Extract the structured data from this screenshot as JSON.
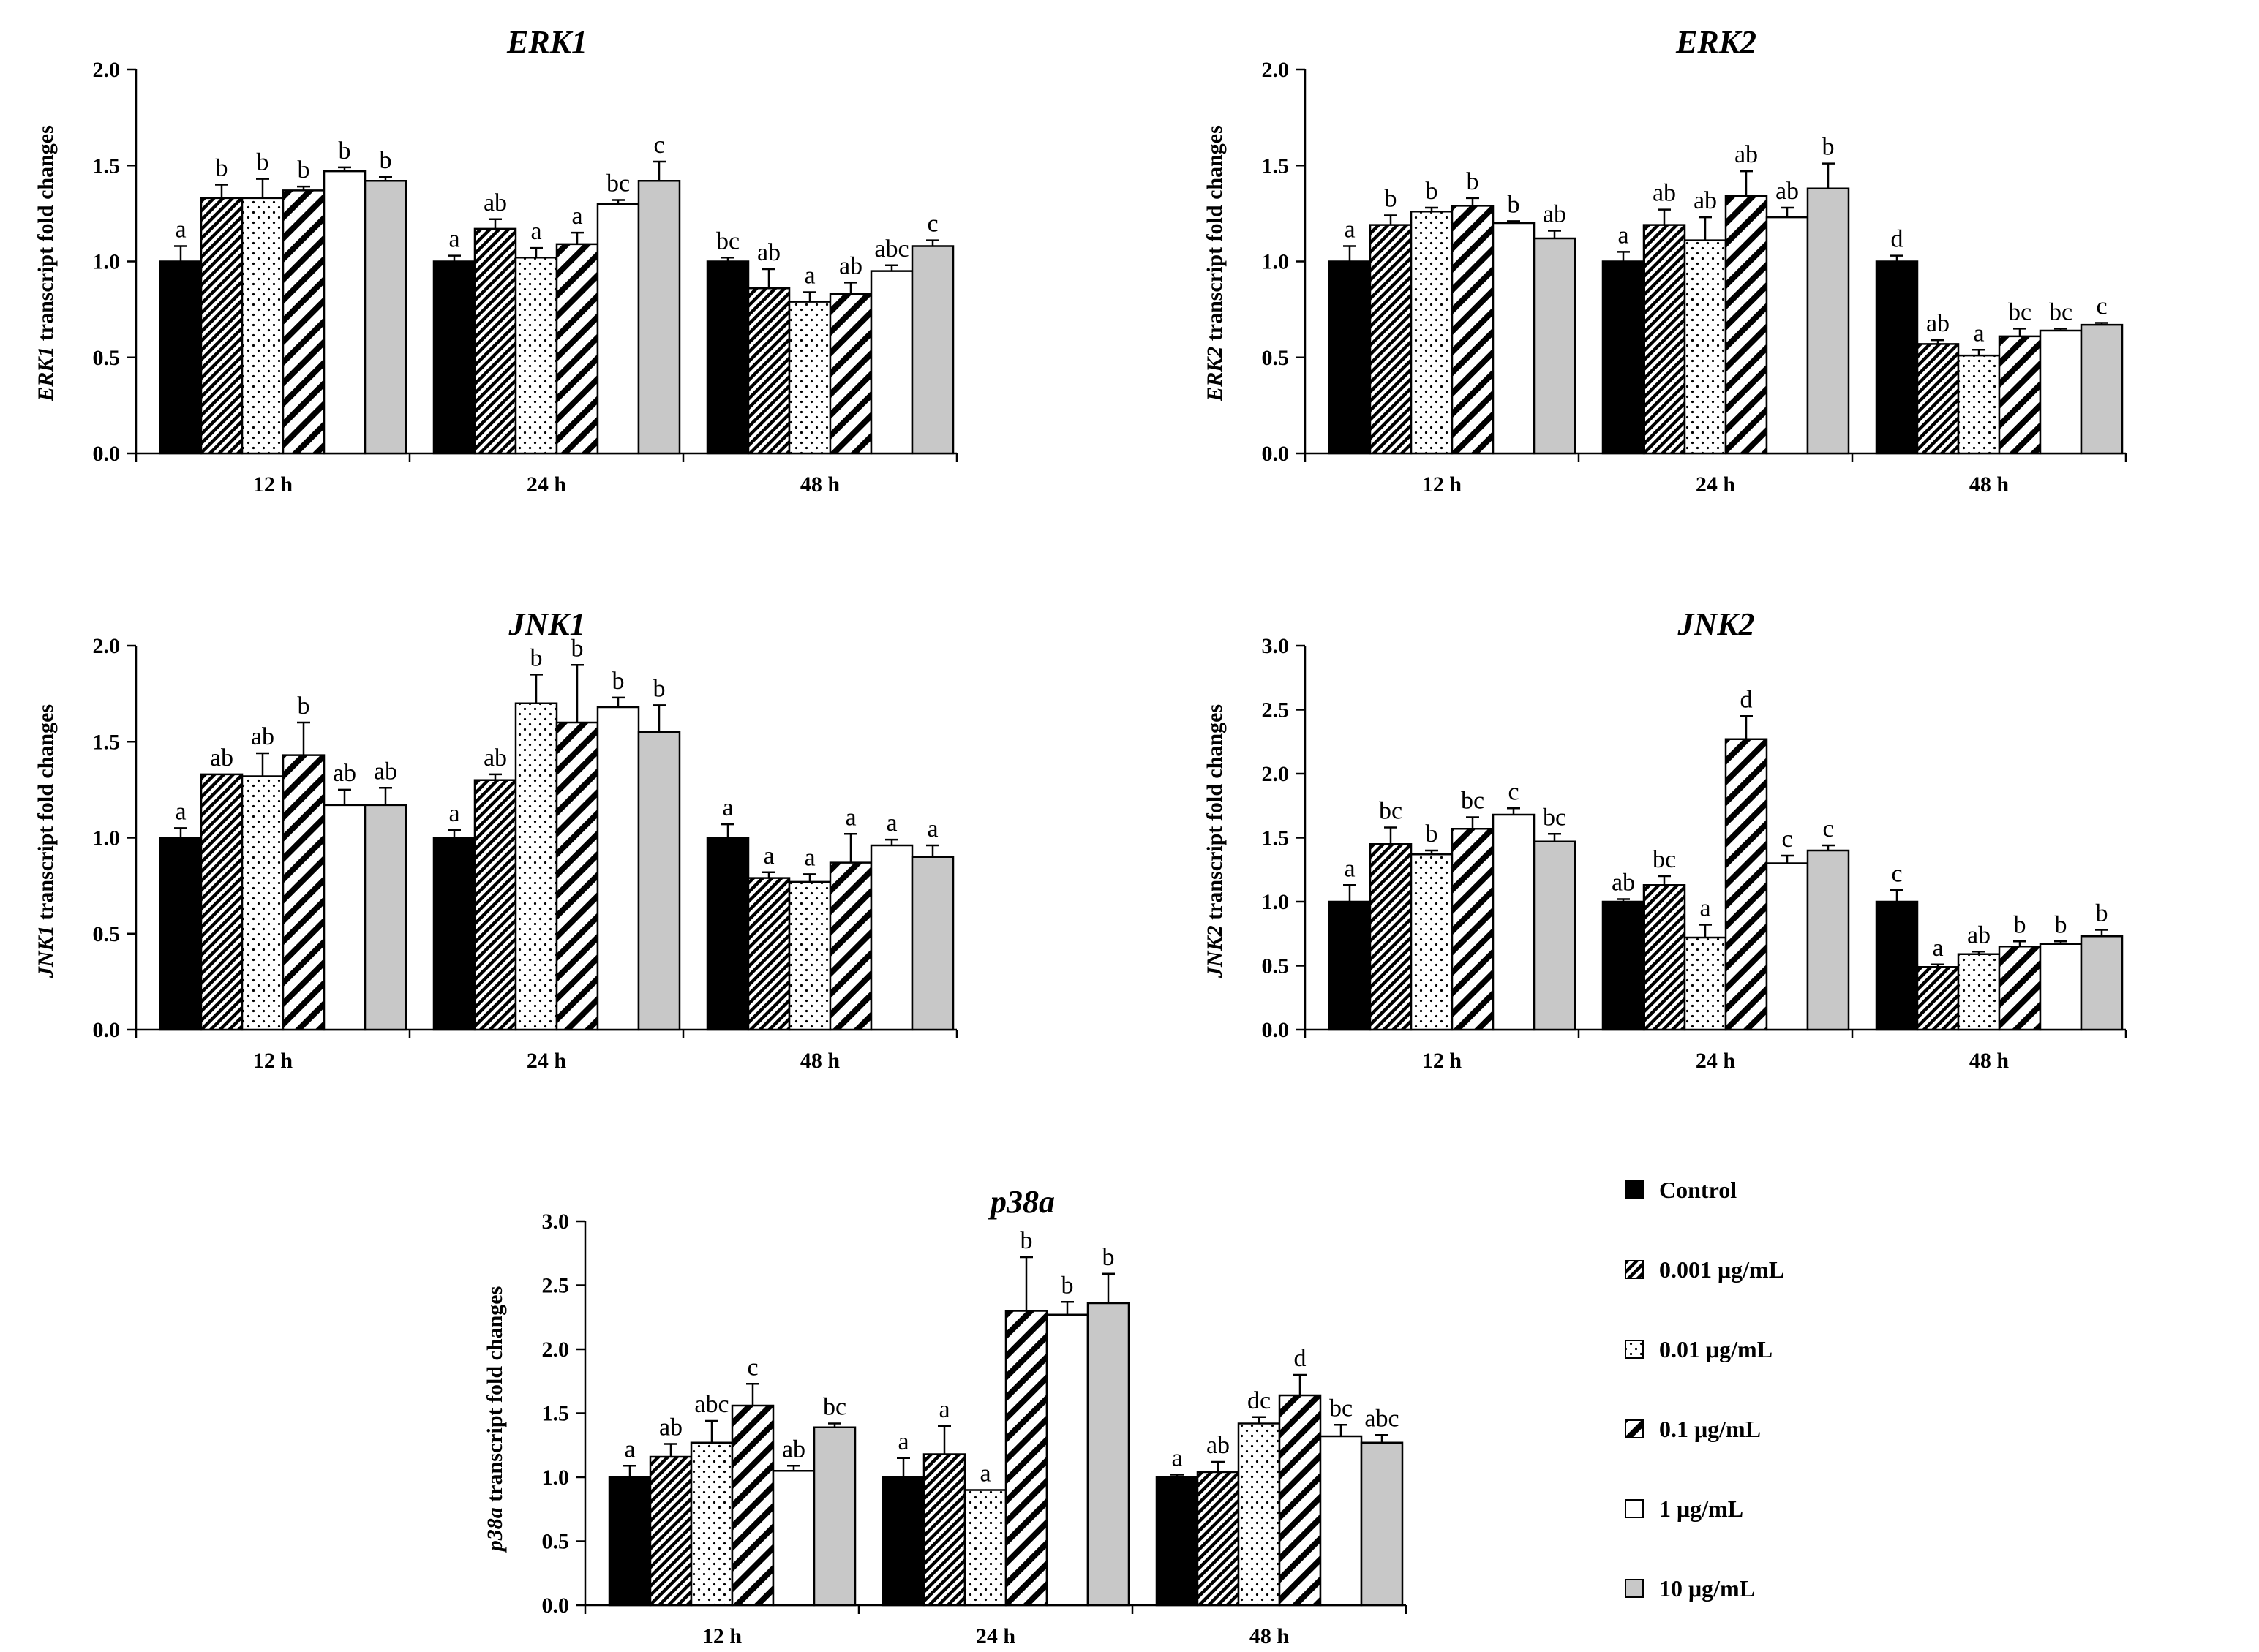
{
  "series_names": [
    "Control",
    "0.001 μg/mL",
    "0.01 μg/mL",
    "0.1 μg/mL",
    "1 μg/mL",
    "10 μg/mL"
  ],
  "series_styles": [
    {
      "fill": "#000000",
      "pattern": "solid"
    },
    {
      "fill": "#ffffff",
      "pattern": "dense-diagonal"
    },
    {
      "fill": "#ffffff",
      "pattern": "dots"
    },
    {
      "fill": "#ffffff",
      "pattern": "wide-diagonal"
    },
    {
      "fill": "#ffffff",
      "pattern": "none"
    },
    {
      "fill": "#c8c8c8",
      "pattern": "solid"
    }
  ],
  "legend": {
    "items": [
      "Control",
      "0.001 μg/mL",
      "0.01 μg/mL",
      "0.1 μg/mL",
      "1 μg/mL",
      "10 μg/mL"
    ]
  },
  "chart_data": [
    {
      "type": "bar",
      "title": "ERK1",
      "ylabel_gene": "ERK1",
      "ylabel_rest": " transcript fold changes",
      "categories": [
        "12 h",
        "24 h",
        "48 h"
      ],
      "ylim": [
        0,
        2.0
      ],
      "yticks": [
        "0.0",
        "0.5",
        "1.0",
        "1.5",
        "2.0"
      ],
      "series": [
        {
          "name": "Control",
          "values": [
            1.0,
            1.0,
            1.0
          ],
          "errors": [
            0.08,
            0.03,
            0.02
          ],
          "labels": [
            "a",
            "a",
            "bc"
          ]
        },
        {
          "name": "0.001 μg/mL",
          "values": [
            1.33,
            1.17,
            0.86
          ],
          "errors": [
            0.07,
            0.05,
            0.1
          ],
          "labels": [
            "b",
            "ab",
            "ab"
          ]
        },
        {
          "name": "0.01 μg/mL",
          "values": [
            1.33,
            1.02,
            0.79
          ],
          "errors": [
            0.1,
            0.05,
            0.05
          ],
          "labels": [
            "b",
            "a",
            "a"
          ]
        },
        {
          "name": "0.1 μg/mL",
          "values": [
            1.37,
            1.09,
            0.83
          ],
          "errors": [
            0.02,
            0.06,
            0.06
          ],
          "labels": [
            "b",
            "a",
            "ab"
          ]
        },
        {
          "name": "1 μg/mL",
          "values": [
            1.47,
            1.3,
            0.95
          ],
          "errors": [
            0.02,
            0.02,
            0.03
          ],
          "labels": [
            "b",
            "bc",
            "abc"
          ]
        },
        {
          "name": "10 μg/mL",
          "values": [
            1.42,
            1.42,
            1.08
          ],
          "errors": [
            0.02,
            0.1,
            0.03
          ],
          "labels": [
            "b",
            "c",
            "c"
          ]
        }
      ]
    },
    {
      "type": "bar",
      "title": "ERK2",
      "ylabel_gene": "ERK2",
      "ylabel_rest": " transcript fold changes",
      "categories": [
        "12 h",
        "24 h",
        "48 h"
      ],
      "ylim": [
        0,
        2.0
      ],
      "yticks": [
        "0.0",
        "0.5",
        "1.0",
        "1.5",
        "2.0"
      ],
      "series": [
        {
          "name": "Control",
          "values": [
            1.0,
            1.0,
            1.0
          ],
          "errors": [
            0.08,
            0.05,
            0.03
          ],
          "labels": [
            "a",
            "a",
            "d"
          ]
        },
        {
          "name": "0.001 μg/mL",
          "values": [
            1.19,
            1.19,
            0.57
          ],
          "errors": [
            0.05,
            0.08,
            0.02
          ],
          "labels": [
            "b",
            "ab",
            "ab"
          ]
        },
        {
          "name": "0.01 μg/mL",
          "values": [
            1.26,
            1.11,
            0.51
          ],
          "errors": [
            0.02,
            0.12,
            0.03
          ],
          "labels": [
            "b",
            "ab",
            "a"
          ]
        },
        {
          "name": "0.1 μg/mL",
          "values": [
            1.29,
            1.34,
            0.61
          ],
          "errors": [
            0.04,
            0.13,
            0.04
          ],
          "labels": [
            "b",
            "ab",
            "bc"
          ]
        },
        {
          "name": "1 μg/mL",
          "values": [
            1.2,
            1.23,
            0.64
          ],
          "errors": [
            0.01,
            0.05,
            0.01
          ],
          "labels": [
            "b",
            "ab",
            "bc"
          ]
        },
        {
          "name": "10 μg/mL",
          "values": [
            1.12,
            1.38,
            0.67
          ],
          "errors": [
            0.04,
            0.13,
            0.01
          ],
          "labels": [
            "ab",
            "b",
            "c"
          ]
        }
      ]
    },
    {
      "type": "bar",
      "title": "JNK1",
      "ylabel_gene": "JNK1",
      "ylabel_rest": " transcript fold changes",
      "categories": [
        "12 h",
        "24 h",
        "48 h"
      ],
      "ylim": [
        0,
        2.0
      ],
      "yticks": [
        "0.0",
        "0.5",
        "1.0",
        "1.5",
        "2.0"
      ],
      "series": [
        {
          "name": "Control",
          "values": [
            1.0,
            1.0,
            1.0
          ],
          "errors": [
            0.05,
            0.04,
            0.07
          ],
          "labels": [
            "a",
            "a",
            "a"
          ]
        },
        {
          "name": "0.001 μg/mL",
          "values": [
            1.33,
            1.3,
            0.79
          ],
          "errors": [
            0.0,
            0.03,
            0.03
          ],
          "labels": [
            "ab",
            "ab",
            "a"
          ]
        },
        {
          "name": "0.01 μg/mL",
          "values": [
            1.32,
            1.7,
            0.77
          ],
          "errors": [
            0.12,
            0.15,
            0.04
          ],
          "labels": [
            "ab",
            "b",
            "a"
          ]
        },
        {
          "name": "0.1 μg/mL",
          "values": [
            1.43,
            1.6,
            0.87
          ],
          "errors": [
            0.17,
            0.3,
            0.15
          ],
          "labels": [
            "b",
            "b",
            "a"
          ]
        },
        {
          "name": "1 μg/mL",
          "values": [
            1.17,
            1.68,
            0.96
          ],
          "errors": [
            0.08,
            0.05,
            0.03
          ],
          "labels": [
            "ab",
            "b",
            "a"
          ]
        },
        {
          "name": "10 μg/mL",
          "values": [
            1.17,
            1.55,
            0.9
          ],
          "errors": [
            0.09,
            0.14,
            0.06
          ],
          "labels": [
            "ab",
            "b",
            "a"
          ]
        }
      ]
    },
    {
      "type": "bar",
      "title": "JNK2",
      "ylabel_gene": "JNK2",
      "ylabel_rest": " transcript fold changes",
      "categories": [
        "12 h",
        "24 h",
        "48 h"
      ],
      "ylim": [
        0,
        3.0
      ],
      "yticks": [
        "0.0",
        "0.5",
        "1.0",
        "1.5",
        "2.0",
        "2.5",
        "3.0"
      ],
      "series": [
        {
          "name": "Control",
          "values": [
            1.0,
            1.0,
            1.0
          ],
          "errors": [
            0.13,
            0.02,
            0.09
          ],
          "labels": [
            "a",
            "ab",
            "c"
          ]
        },
        {
          "name": "0.001 μg/mL",
          "values": [
            1.45,
            1.13,
            0.49
          ],
          "errors": [
            0.13,
            0.07,
            0.02
          ],
          "labels": [
            "bc",
            "bc",
            "a"
          ]
        },
        {
          "name": "0.01 μg/mL",
          "values": [
            1.37,
            0.72,
            0.59
          ],
          "errors": [
            0.03,
            0.1,
            0.02
          ],
          "labels": [
            "b",
            "a",
            "ab"
          ]
        },
        {
          "name": "0.1 μg/mL",
          "values": [
            1.57,
            2.27,
            0.65
          ],
          "errors": [
            0.09,
            0.18,
            0.04
          ],
          "labels": [
            "bc",
            "d",
            "b"
          ]
        },
        {
          "name": "1 μg/mL",
          "values": [
            1.68,
            1.3,
            0.67
          ],
          "errors": [
            0.05,
            0.06,
            0.02
          ],
          "labels": [
            "c",
            "c",
            "b"
          ]
        },
        {
          "name": "10 μg/mL",
          "values": [
            1.47,
            1.4,
            0.73
          ],
          "errors": [
            0.06,
            0.04,
            0.05
          ],
          "labels": [
            "bc",
            "c",
            "b"
          ]
        }
      ]
    },
    {
      "type": "bar",
      "title": "p38a",
      "ylabel_gene": "p38a",
      "ylabel_rest": " transcript fold changes",
      "categories": [
        "12 h",
        "24 h",
        "48 h"
      ],
      "ylim": [
        0,
        3.0
      ],
      "yticks": [
        "0.0",
        "0.5",
        "1.0",
        "1.5",
        "2.0",
        "2.5",
        "3.0"
      ],
      "series": [
        {
          "name": "Control",
          "values": [
            1.0,
            1.0,
            1.0
          ],
          "errors": [
            0.09,
            0.15,
            0.02
          ],
          "labels": [
            "a",
            "a",
            "a"
          ]
        },
        {
          "name": "0.001 μg/mL",
          "values": [
            1.16,
            1.18,
            1.04
          ],
          "errors": [
            0.1,
            0.22,
            0.08
          ],
          "labels": [
            "ab",
            "a",
            "ab"
          ]
        },
        {
          "name": "0.01 μg/mL",
          "values": [
            1.27,
            0.9,
            1.42
          ],
          "errors": [
            0.17,
            0.0,
            0.05
          ],
          "labels": [
            "abc",
            "a",
            "dc"
          ]
        },
        {
          "name": "0.1 μg/mL",
          "values": [
            1.56,
            2.3,
            1.64
          ],
          "errors": [
            0.17,
            0.42,
            0.16
          ],
          "labels": [
            "c",
            "b",
            "d"
          ]
        },
        {
          "name": "1 μg/mL",
          "values": [
            1.05,
            2.27,
            1.32
          ],
          "errors": [
            0.04,
            0.1,
            0.09
          ],
          "labels": [
            "ab",
            "b",
            "bc"
          ]
        },
        {
          "name": "10 μg/mL",
          "values": [
            1.39,
            2.36,
            1.27
          ],
          "errors": [
            0.03,
            0.23,
            0.06
          ],
          "labels": [
            "bc",
            "b",
            "abc"
          ]
        }
      ]
    }
  ]
}
